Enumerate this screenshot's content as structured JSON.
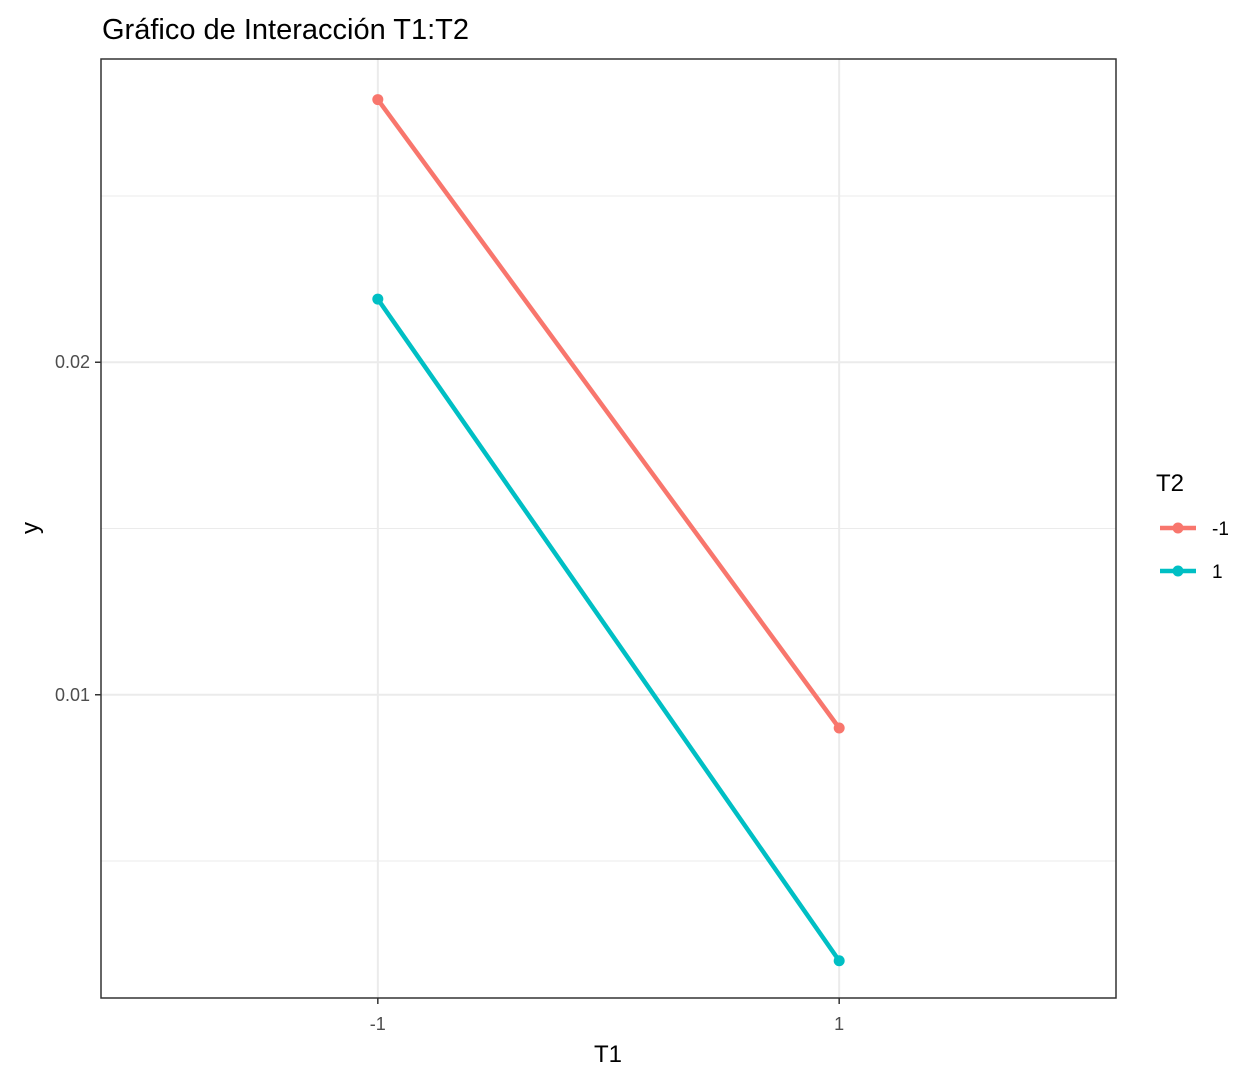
{
  "chart_data": {
    "type": "line",
    "title": "Gráfico de Interacción T1:T2",
    "xlabel": "T1",
    "ylabel": "y",
    "categories": [
      "-1",
      "1"
    ],
    "x_ticks": [
      "-1",
      "1"
    ],
    "y_ticks": [
      {
        "value": 0.01,
        "label": "0.01"
      },
      {
        "value": 0.02,
        "label": "0.02"
      }
    ],
    "xlim": [
      -2.2,
      2.2
    ],
    "ylim": [
      0.00088,
      0.02912
    ],
    "grid": true,
    "legend": {
      "title": "T2",
      "position": "right"
    },
    "series": [
      {
        "name": "-1",
        "color": "#F8766D",
        "values": [
          0.0279,
          0.009
        ]
      },
      {
        "name": "1",
        "color": "#00BFC4",
        "values": [
          0.0219,
          0.002
        ]
      }
    ]
  }
}
